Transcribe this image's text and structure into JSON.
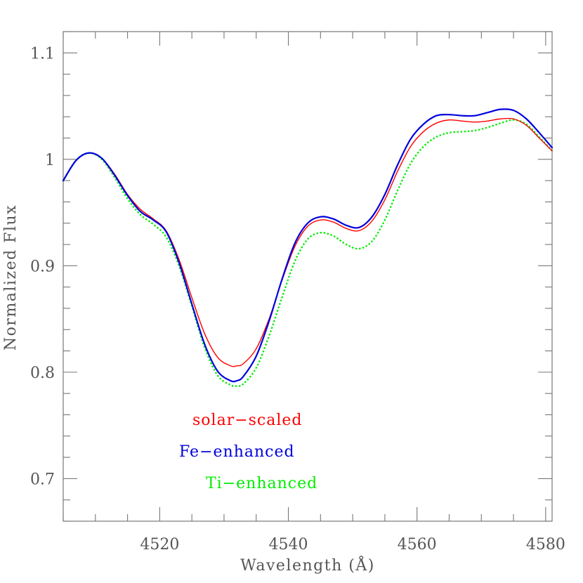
{
  "chart_data": {
    "type": "line",
    "title": "",
    "xlabel": "Wavelength (Å)",
    "ylabel": "Normalized Flux",
    "xlim": [
      4505,
      4581
    ],
    "ylim": [
      0.66,
      1.12
    ],
    "x_ticks": [
      4520,
      4540,
      4560,
      4580
    ],
    "x_tick_labels": [
      "4520",
      "4540",
      "4560",
      "4580"
    ],
    "y_ticks": [
      0.7,
      0.8,
      0.9,
      1.0,
      1.1
    ],
    "y_tick_labels": [
      "0.7",
      "0.8",
      "0.9",
      "1",
      "1.1"
    ],
    "grid": false,
    "legend_placement": "lower-left",
    "series": [
      {
        "name": "solar−scaled",
        "color": "#ff0000",
        "style": "solid",
        "x": [
          4505,
          4507,
          4509,
          4511,
          4513,
          4515,
          4517,
          4519,
          4521,
          4523,
          4525,
          4527,
          4529,
          4531,
          4532,
          4533,
          4535,
          4537,
          4539,
          4541,
          4543,
          4545,
          4547,
          4549,
          4551,
          4553,
          4555,
          4557,
          4559,
          4561,
          4563,
          4565,
          4567,
          4569,
          4571,
          4573,
          4575,
          4577,
          4579,
          4581
        ],
        "y": [
          0.98,
          0.999,
          1.006,
          1.001,
          0.986,
          0.967,
          0.953,
          0.944,
          0.933,
          0.906,
          0.87,
          0.836,
          0.814,
          0.806,
          0.806,
          0.808,
          0.822,
          0.85,
          0.886,
          0.918,
          0.937,
          0.943,
          0.941,
          0.935,
          0.933,
          0.942,
          0.962,
          0.989,
          1.012,
          1.026,
          1.034,
          1.037,
          1.036,
          1.035,
          1.036,
          1.038,
          1.038,
          1.032,
          1.02,
          1.008
        ]
      },
      {
        "name": "Fe−enhanced",
        "color": "#0000dd",
        "style": "solid",
        "x": [
          4505,
          4507,
          4509,
          4511,
          4513,
          4515,
          4517,
          4519,
          4521,
          4523,
          4525,
          4527,
          4529,
          4531,
          4532,
          4533,
          4535,
          4537,
          4539,
          4541,
          4543,
          4545,
          4547,
          4549,
          4551,
          4553,
          4555,
          4557,
          4559,
          4561,
          4563,
          4565,
          4567,
          4569,
          4571,
          4573,
          4575,
          4577,
          4579,
          4581
        ],
        "y": [
          0.98,
          0.999,
          1.006,
          1.001,
          0.985,
          0.966,
          0.951,
          0.943,
          0.932,
          0.903,
          0.864,
          0.826,
          0.801,
          0.792,
          0.792,
          0.796,
          0.815,
          0.848,
          0.887,
          0.921,
          0.94,
          0.946,
          0.944,
          0.938,
          0.936,
          0.946,
          0.967,
          0.995,
          1.019,
          1.033,
          1.041,
          1.042,
          1.041,
          1.041,
          1.044,
          1.047,
          1.046,
          1.038,
          1.025,
          1.011
        ]
      },
      {
        "name": "Ti−enhanced",
        "color": "#00ee00",
        "style": "dotted",
        "x": [
          4505,
          4507,
          4509,
          4511,
          4513,
          4515,
          4517,
          4519,
          4521,
          4523,
          4525,
          4527,
          4529,
          4531,
          4532,
          4533,
          4535,
          4537,
          4539,
          4541,
          4543,
          4545,
          4547,
          4549,
          4551,
          4553,
          4555,
          4557,
          4559,
          4561,
          4563,
          4565,
          4567,
          4569,
          4571,
          4573,
          4575,
          4577,
          4579,
          4581
        ],
        "y": [
          0.98,
          0.999,
          1.006,
          1.0,
          0.983,
          0.963,
          0.948,
          0.939,
          0.927,
          0.9,
          0.862,
          0.823,
          0.797,
          0.788,
          0.787,
          0.789,
          0.804,
          0.834,
          0.87,
          0.904,
          0.925,
          0.931,
          0.928,
          0.92,
          0.916,
          0.923,
          0.943,
          0.971,
          0.996,
          1.012,
          1.021,
          1.025,
          1.026,
          1.027,
          1.03,
          1.034,
          1.037,
          1.033,
          1.021,
          1.008
        ]
      }
    ]
  }
}
